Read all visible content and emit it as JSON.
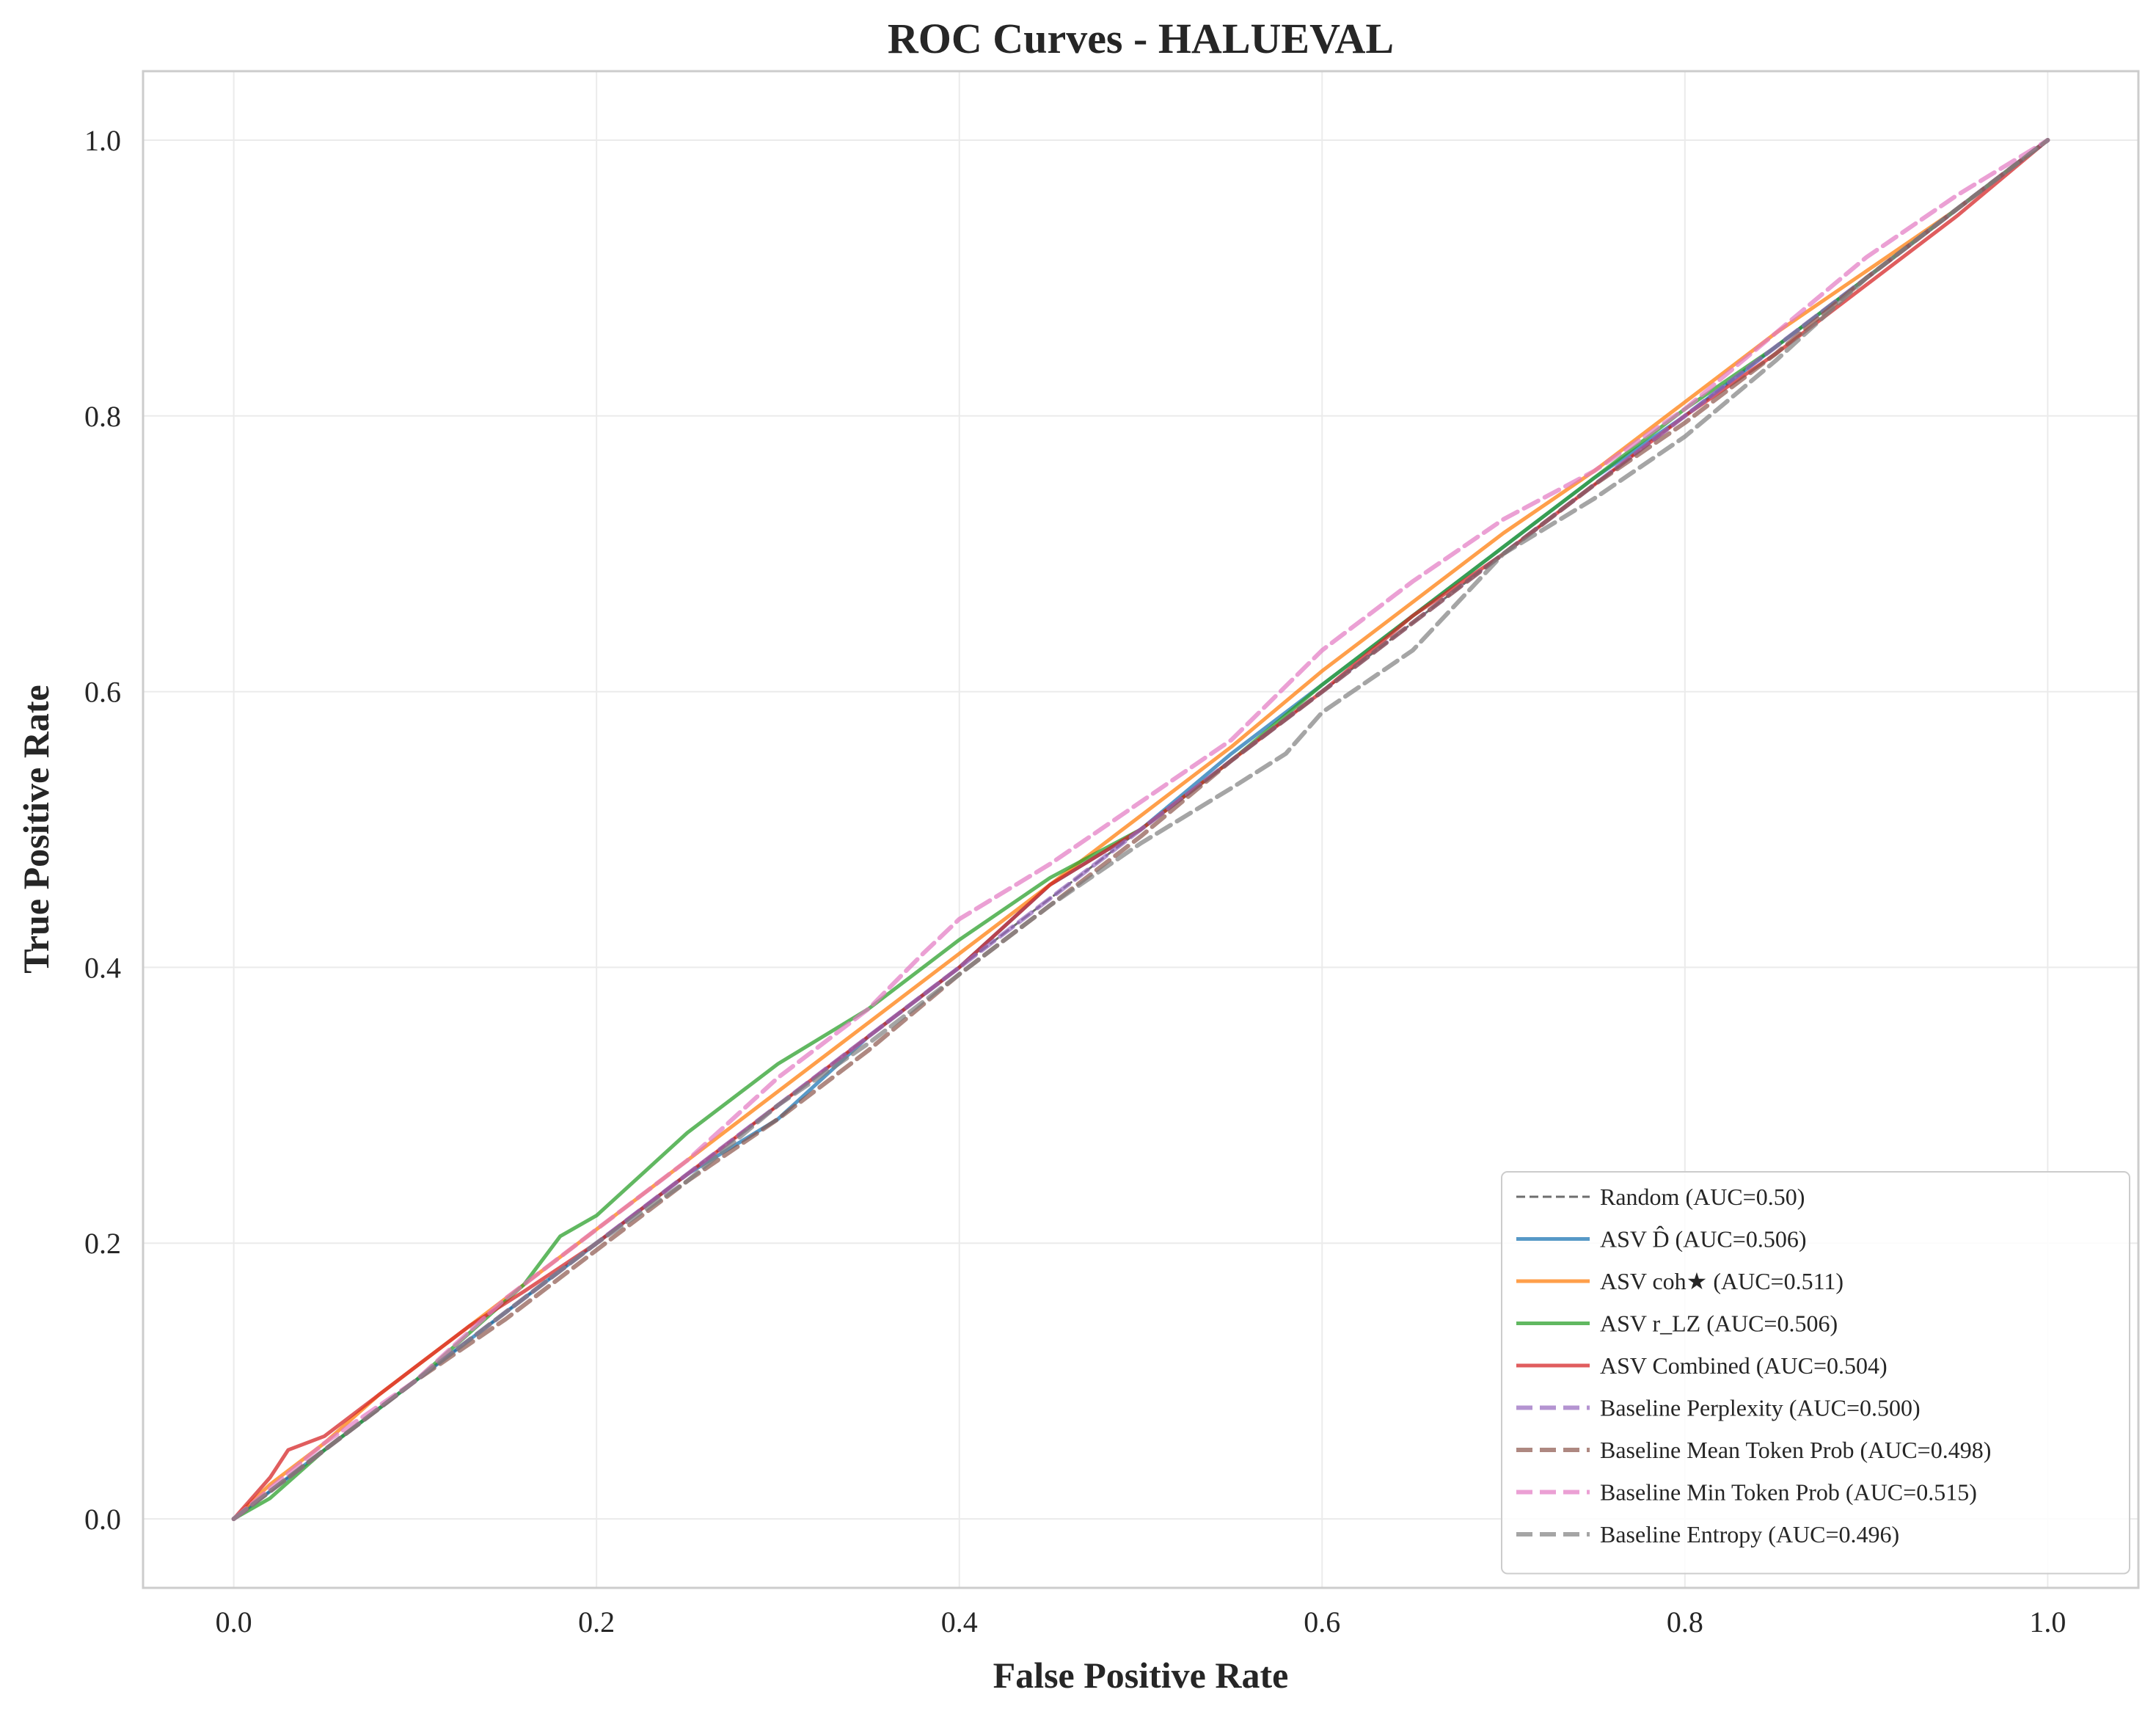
{
  "chart_data": {
    "type": "line",
    "title": "ROC Curves - HALUEVAL",
    "xlabel": "False Positive Rate",
    "ylabel": "True Positive Rate",
    "xlim": [
      -0.05,
      1.05
    ],
    "ylim": [
      -0.05,
      1.05
    ],
    "xticks": [
      "0.0",
      "0.2",
      "0.4",
      "0.6",
      "0.8",
      "1.0"
    ],
    "yticks": [
      "0.0",
      "0.2",
      "0.4",
      "0.6",
      "0.8",
      "1.0"
    ],
    "grid": true,
    "legend_position": "lower-right",
    "series": [
      {
        "name": "Random (AUC=0.50)",
        "color": "#555555",
        "dash": "dashed-thin",
        "x": [
          0,
          1
        ],
        "y": [
          0,
          1
        ]
      },
      {
        "name": "ASV D̂ (AUC=0.506)",
        "color": "#1f77b4",
        "dash": "solid",
        "x": [
          0,
          0.02,
          0.05,
          0.08,
          0.1,
          0.13,
          0.16,
          0.2,
          0.25,
          0.3,
          0.35,
          0.4,
          0.45,
          0.5,
          0.55,
          0.6,
          0.65,
          0.7,
          0.75,
          0.8,
          0.85,
          0.9,
          0.95,
          1.0
        ],
        "y": [
          0,
          0.02,
          0.05,
          0.08,
          0.1,
          0.13,
          0.16,
          0.2,
          0.25,
          0.29,
          0.35,
          0.4,
          0.46,
          0.5,
          0.555,
          0.605,
          0.655,
          0.705,
          0.755,
          0.8,
          0.85,
          0.9,
          0.95,
          1.0
        ]
      },
      {
        "name": "ASV coh★ (AUC=0.511)",
        "color": "#ff7f0e",
        "dash": "solid",
        "x": [
          0,
          0.02,
          0.05,
          0.08,
          0.1,
          0.13,
          0.16,
          0.2,
          0.25,
          0.3,
          0.35,
          0.4,
          0.45,
          0.5,
          0.55,
          0.6,
          0.65,
          0.7,
          0.75,
          0.8,
          0.85,
          0.9,
          0.95,
          1.0
        ],
        "y": [
          0,
          0.025,
          0.055,
          0.09,
          0.11,
          0.14,
          0.17,
          0.21,
          0.26,
          0.31,
          0.36,
          0.41,
          0.46,
          0.51,
          0.56,
          0.615,
          0.665,
          0.715,
          0.76,
          0.81,
          0.86,
          0.905,
          0.95,
          1.0
        ]
      },
      {
        "name": "ASV r_LZ (AUC=0.506)",
        "color": "#2ca02c",
        "dash": "solid",
        "x": [
          0,
          0.02,
          0.05,
          0.08,
          0.1,
          0.13,
          0.16,
          0.18,
          0.2,
          0.25,
          0.28,
          0.3,
          0.35,
          0.4,
          0.45,
          0.5,
          0.55,
          0.6,
          0.65,
          0.7,
          0.75,
          0.8,
          0.85,
          0.9,
          0.95,
          1.0
        ],
        "y": [
          0,
          0.015,
          0.05,
          0.08,
          0.1,
          0.135,
          0.17,
          0.205,
          0.22,
          0.28,
          0.31,
          0.33,
          0.37,
          0.42,
          0.465,
          0.5,
          0.55,
          0.605,
          0.655,
          0.705,
          0.755,
          0.805,
          0.85,
          0.9,
          0.95,
          1.0
        ]
      },
      {
        "name": "ASV Combined (AUC=0.504)",
        "color": "#d62728",
        "dash": "solid",
        "x": [
          0,
          0.02,
          0.03,
          0.05,
          0.08,
          0.1,
          0.13,
          0.16,
          0.2,
          0.25,
          0.3,
          0.35,
          0.4,
          0.45,
          0.5,
          0.55,
          0.6,
          0.65,
          0.7,
          0.75,
          0.8,
          0.85,
          0.9,
          0.95,
          1.0
        ],
        "y": [
          0,
          0.03,
          0.05,
          0.06,
          0.09,
          0.11,
          0.14,
          0.165,
          0.2,
          0.25,
          0.3,
          0.35,
          0.4,
          0.46,
          0.5,
          0.55,
          0.6,
          0.655,
          0.7,
          0.75,
          0.8,
          0.845,
          0.895,
          0.945,
          1.0
        ]
      },
      {
        "name": "Baseline Perplexity (AUC=0.500)",
        "color": "#9467bd",
        "dash": "dashed",
        "x": [
          0,
          0.05,
          0.1,
          0.15,
          0.2,
          0.25,
          0.3,
          0.35,
          0.4,
          0.45,
          0.5,
          0.55,
          0.6,
          0.65,
          0.7,
          0.75,
          0.8,
          0.85,
          0.9,
          0.95,
          1.0
        ],
        "y": [
          0,
          0.05,
          0.1,
          0.15,
          0.2,
          0.25,
          0.3,
          0.35,
          0.4,
          0.45,
          0.5,
          0.55,
          0.6,
          0.65,
          0.7,
          0.75,
          0.8,
          0.85,
          0.9,
          0.95,
          1.0
        ]
      },
      {
        "name": "Baseline Mean Token Prob (AUC=0.498)",
        "color": "#8c564b",
        "dash": "dashed",
        "x": [
          0,
          0.05,
          0.1,
          0.15,
          0.2,
          0.25,
          0.3,
          0.35,
          0.4,
          0.45,
          0.5,
          0.55,
          0.6,
          0.65,
          0.7,
          0.75,
          0.8,
          0.85,
          0.9,
          0.95,
          1.0
        ],
        "y": [
          0,
          0.05,
          0.1,
          0.145,
          0.195,
          0.245,
          0.29,
          0.34,
          0.395,
          0.445,
          0.495,
          0.55,
          0.6,
          0.65,
          0.7,
          0.75,
          0.795,
          0.845,
          0.9,
          0.95,
          1.0
        ]
      },
      {
        "name": "Baseline Min Token Prob (AUC=0.515)",
        "color": "#e377c2",
        "dash": "dashed",
        "x": [
          0,
          0.05,
          0.1,
          0.15,
          0.2,
          0.25,
          0.3,
          0.35,
          0.38,
          0.4,
          0.45,
          0.5,
          0.55,
          0.6,
          0.65,
          0.7,
          0.75,
          0.8,
          0.85,
          0.9,
          0.95,
          1.0
        ],
        "y": [
          0,
          0.055,
          0.1,
          0.16,
          0.21,
          0.26,
          0.32,
          0.37,
          0.41,
          0.435,
          0.475,
          0.52,
          0.565,
          0.63,
          0.68,
          0.725,
          0.76,
          0.805,
          0.86,
          0.915,
          0.96,
          1.0
        ]
      },
      {
        "name": "Baseline Entropy (AUC=0.496)",
        "color": "#7f7f7f",
        "dash": "dashed",
        "x": [
          0,
          0.05,
          0.1,
          0.15,
          0.2,
          0.25,
          0.3,
          0.35,
          0.4,
          0.45,
          0.5,
          0.55,
          0.58,
          0.6,
          0.65,
          0.7,
          0.75,
          0.8,
          0.85,
          0.9,
          0.95,
          1.0
        ],
        "y": [
          0,
          0.05,
          0.1,
          0.15,
          0.2,
          0.245,
          0.3,
          0.345,
          0.395,
          0.445,
          0.49,
          0.53,
          0.555,
          0.585,
          0.63,
          0.7,
          0.74,
          0.785,
          0.84,
          0.9,
          0.95,
          1.0
        ]
      }
    ]
  }
}
